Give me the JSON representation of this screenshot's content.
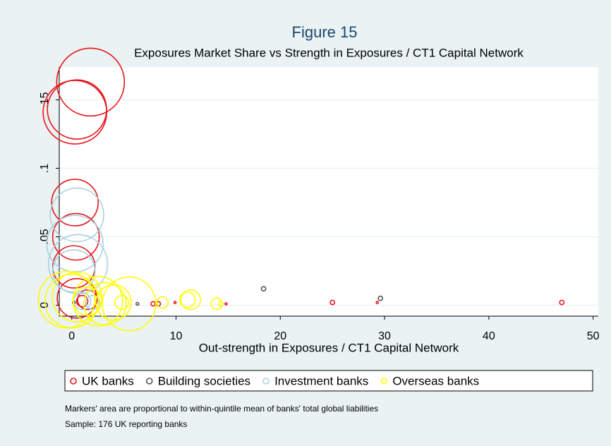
{
  "chart_data": {
    "type": "scatter",
    "title": "Figure 15",
    "subtitle": "Exposures Market Share vs Strength in Exposures / CT1 Capital Network",
    "xlabel": "Out-strength in Exposures / CT1 Capital Network",
    "xlim": [
      -1.2,
      50.5
    ],
    "ylim": [
      -0.008,
      0.174
    ],
    "xticks": [
      0,
      10,
      20,
      30,
      40,
      50
    ],
    "yticks": [
      0,
      {
        "value": 0.05,
        "label": ".05"
      },
      {
        "value": 0.1,
        "label": ".1"
      },
      {
        "value": 0.15,
        "label": ".15"
      }
    ],
    "grid": true,
    "legend": "bottom",
    "series": [
      {
        "name": "UK banks",
        "color": "#e8151c",
        "x": [
          1.8,
          0.3,
          0.5,
          0.3,
          0.4,
          0.2,
          0.5,
          1.5,
          1.0,
          7.8,
          8.3,
          9.9,
          14.8,
          25,
          29.3,
          47
        ],
        "values": [
          0.163,
          0.141,
          0.143,
          0.075,
          0.05,
          0.028,
          0.005,
          0.004,
          0.003,
          0.001,
          0.001,
          0.002,
          0.001,
          0.002,
          0.002,
          0.002
        ],
        "sizes": [
          144,
          127,
          110,
          68,
          68,
          56,
          49,
          12,
          4,
          0.6,
          0.6,
          0.15,
          0.15,
          0.6,
          0.15,
          0.6
        ]
      },
      {
        "name": "Building societies",
        "color": "#555555",
        "x": [
          18.4,
          29.6,
          6.3,
          0.2
        ],
        "values": [
          0.012,
          0.005,
          0.001,
          0.002
        ],
        "sizes": [
          0.6,
          0.6,
          0.25,
          0.25
        ]
      },
      {
        "name": "Investment banks",
        "color": "#a9d1e0",
        "x": [
          0.5,
          0.3,
          0.6,
          0.2,
          1.0,
          2.0
        ],
        "values": [
          0.066,
          0.045,
          0.03,
          0.025,
          0.003,
          0.002
        ],
        "sizes": [
          90,
          100,
          110,
          56,
          9,
          6
        ]
      },
      {
        "name": "Overseas banks",
        "color": "#ffff00",
        "x": [
          -0.5,
          0.0,
          0.5,
          2.5,
          4.0,
          5.5,
          3.2,
          4.8,
          8.7,
          11.1,
          11.4,
          13.9,
          14.3,
          1.5
        ],
        "values": [
          0.004,
          0.003,
          0.006,
          0.003,
          0.002,
          0.001,
          0.001,
          0.002,
          0.002,
          0.004,
          0.004,
          0.001,
          0.001,
          0.003
        ],
        "sizes": [
          100,
          90,
          77,
          77,
          39,
          90,
          56,
          6,
          4,
          7.5,
          12,
          4,
          0.6,
          25
        ]
      }
    ],
    "notes": [
      "Markers' area are proportional to within-quintile mean of banks' total global liabilities",
      "Sample: 176 UK reporting banks"
    ]
  }
}
